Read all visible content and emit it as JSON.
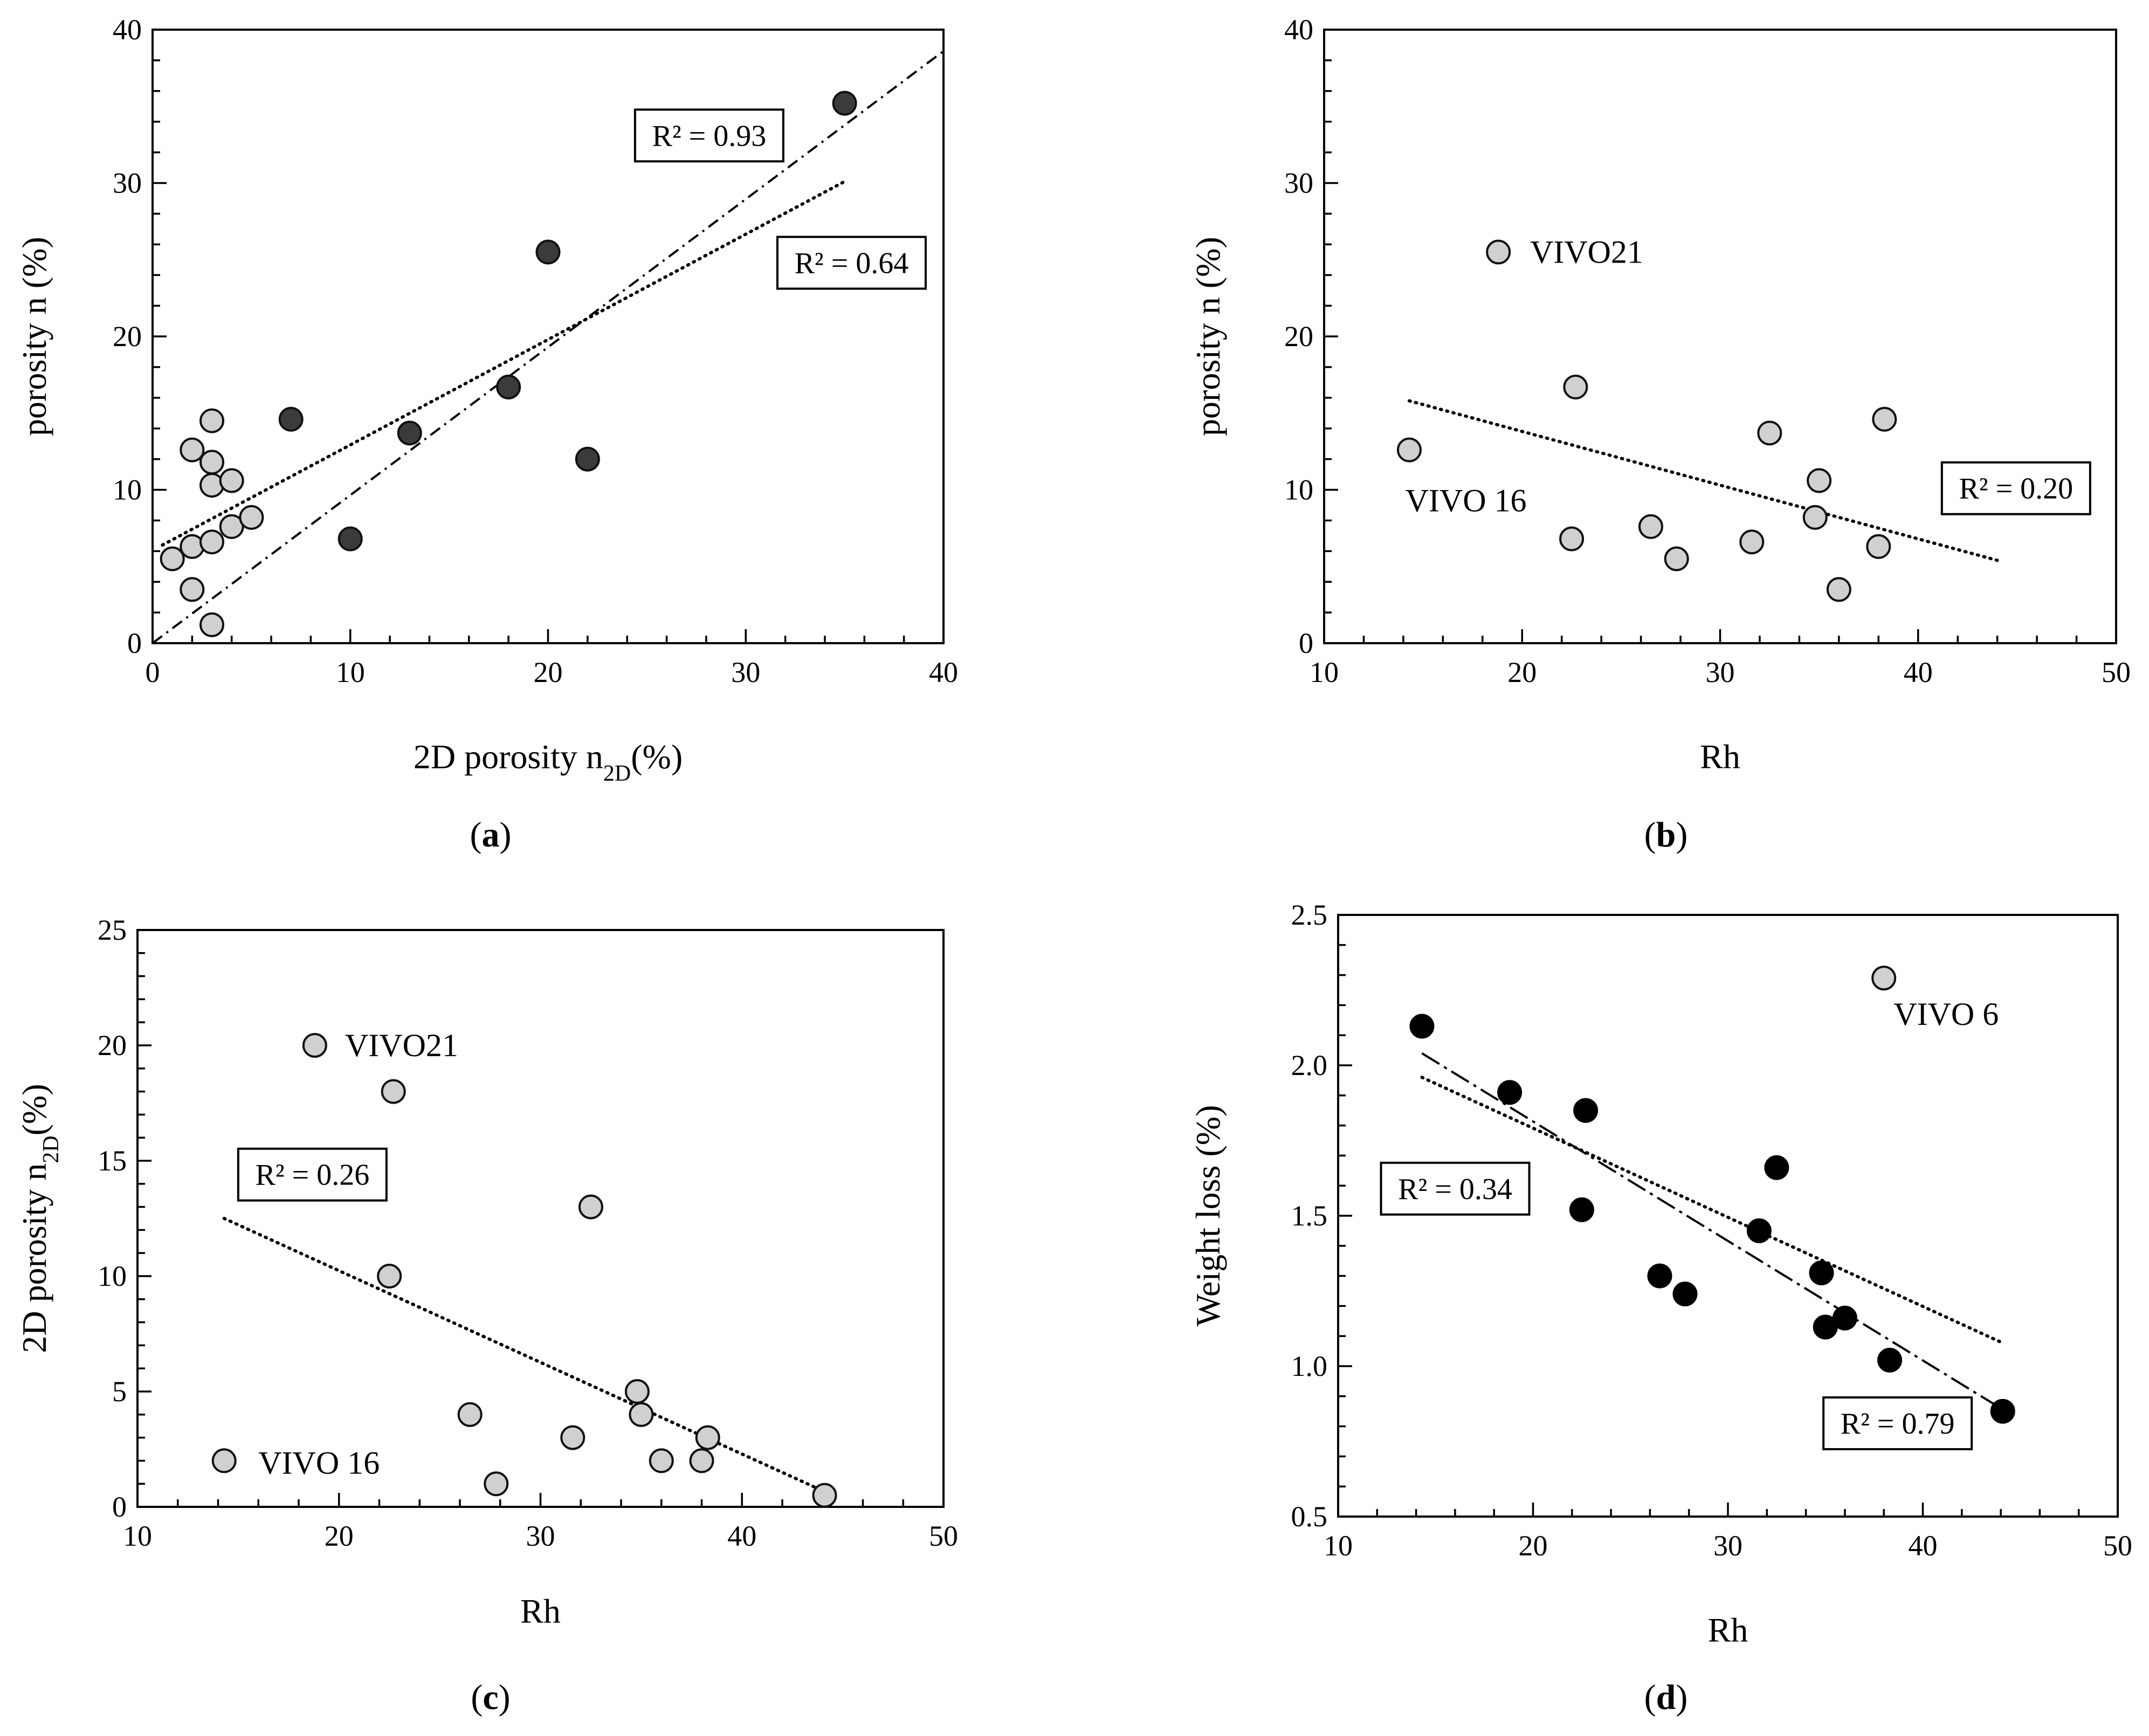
{
  "chart_data": [
    {
      "id": "a",
      "type": "scatter",
      "panel_label": "a",
      "xlabel": "2D porosity n",
      "xlabel_sub": "2D",
      "xlabel_suffix": "(%)",
      "ylabel": "porosity n (%)",
      "xlim": [
        0,
        40
      ],
      "ylim": [
        0,
        40
      ],
      "xticks": [
        0,
        10,
        20,
        30,
        40
      ],
      "yticks": [
        0,
        10,
        20,
        30,
        40
      ],
      "series": [
        {
          "name": "light",
          "style": "light",
          "points": [
            [
              1,
              5.5
            ],
            [
              2,
              3.5
            ],
            [
              2,
              6.3
            ],
            [
              2,
              12.6
            ],
            [
              3,
              1.2
            ],
            [
              3,
              6.6
            ],
            [
              3,
              10.3
            ],
            [
              3,
              11.8
            ],
            [
              3,
              14.5
            ],
            [
              4,
              7.6
            ],
            [
              4,
              10.6
            ],
            [
              5,
              8.2
            ]
          ]
        },
        {
          "name": "dark",
          "style": "dark",
          "points": [
            [
              7,
              14.6
            ],
            [
              10,
              6.8
            ],
            [
              13,
              13.7
            ],
            [
              18,
              16.7
            ],
            [
              20,
              25.5
            ],
            [
              22,
              12.0
            ],
            [
              35,
              35.2
            ]
          ]
        }
      ],
      "trendlines": [
        {
          "style": "dotted",
          "x": [
            0.5,
            35
          ],
          "y": [
            6.4,
            30.1
          ]
        },
        {
          "style": "dashdot",
          "x": [
            0,
            40
          ],
          "y": [
            0,
            38.6
          ]
        }
      ],
      "r2": [
        {
          "text": "R² = 0.93",
          "anchor": [
            24.4,
            33.1
          ]
        },
        {
          "text": "R² = 0.64",
          "anchor": [
            31.6,
            24.8
          ]
        }
      ],
      "annotations": []
    },
    {
      "id": "b",
      "type": "scatter",
      "panel_label": "b",
      "xlabel": "Rh",
      "ylabel": "porosity n (%)",
      "xlim": [
        10,
        50
      ],
      "ylim": [
        0,
        40
      ],
      "xticks": [
        10,
        20,
        30,
        40,
        50
      ],
      "yticks": [
        0,
        10,
        20,
        30,
        40
      ],
      "series": [
        {
          "name": "light",
          "style": "light",
          "points": [
            [
              14.3,
              12.6
            ],
            [
              18.8,
              25.5
            ],
            [
              22.5,
              6.8
            ],
            [
              22.7,
              16.7
            ],
            [
              26.5,
              7.6
            ],
            [
              27.8,
              5.5
            ],
            [
              31.6,
              6.6
            ],
            [
              32.5,
              13.7
            ],
            [
              34.8,
              8.2
            ],
            [
              35.0,
              10.6
            ],
            [
              36.0,
              3.5
            ],
            [
              38.0,
              6.3
            ],
            [
              38.3,
              14.6
            ]
          ]
        }
      ],
      "trendlines": [
        {
          "style": "dotted",
          "x": [
            14.3,
            44
          ],
          "y": [
            15.8,
            5.4
          ]
        }
      ],
      "r2": [
        {
          "text": "R² = 0.20",
          "anchor": [
            41.2,
            10.1
          ]
        }
      ],
      "annotations": [
        {
          "text": "VIVO21",
          "anchor": [
            20.4,
            25.5
          ]
        },
        {
          "text": "VIVO 16",
          "anchor": [
            14.1,
            9.3
          ]
        }
      ]
    },
    {
      "id": "c",
      "type": "scatter",
      "panel_label": "c",
      "xlabel": "Rh",
      "ylabel": "2D porosity n",
      "ylabel_sub": "2D",
      "ylabel_suffix": "(%)",
      "xlim": [
        10,
        50
      ],
      "ylim": [
        0,
        25
      ],
      "xticks": [
        10,
        20,
        30,
        40,
        50
      ],
      "yticks": [
        0,
        5,
        10,
        15,
        20,
        25
      ],
      "series": [
        {
          "name": "light",
          "style": "light",
          "points": [
            [
              14.3,
              2
            ],
            [
              18.8,
              20
            ],
            [
              22.5,
              10
            ],
            [
              22.7,
              18
            ],
            [
              26.5,
              4
            ],
            [
              27.8,
              1
            ],
            [
              31.6,
              3
            ],
            [
              32.5,
              13
            ],
            [
              34.8,
              5
            ],
            [
              35.0,
              4
            ],
            [
              36.0,
              2
            ],
            [
              38.0,
              2
            ],
            [
              38.3,
              3
            ],
            [
              44.1,
              0.5
            ]
          ]
        }
      ],
      "trendlines": [
        {
          "style": "dotted",
          "x": [
            14.3,
            44
          ],
          "y": [
            12.5,
            0.7
          ]
        }
      ],
      "r2": [
        {
          "text": "R² = 0.26",
          "anchor": [
            15.0,
            14.4
          ]
        }
      ],
      "annotations": [
        {
          "text": "VIVO21",
          "anchor": [
            20.3,
            20.0
          ]
        },
        {
          "text": "VIVO 16",
          "anchor": [
            16.0,
            1.9
          ]
        }
      ]
    },
    {
      "id": "d",
      "type": "scatter",
      "panel_label": "d",
      "xlabel": "Rh",
      "ylabel": "Weight loss (%)",
      "xlim": [
        10,
        50
      ],
      "ylim": [
        0.5,
        2.5
      ],
      "xticks": [
        10,
        20,
        30,
        40,
        50
      ],
      "yticks": [
        0.5,
        1.0,
        1.5,
        2.0,
        2.5
      ],
      "ytick_format": 1,
      "series": [
        {
          "name": "black",
          "style": "black",
          "points": [
            [
              14.3,
              2.13
            ],
            [
              18.8,
              1.91
            ],
            [
              22.5,
              1.52
            ],
            [
              22.7,
              1.85
            ],
            [
              26.5,
              1.3
            ],
            [
              27.8,
              1.24
            ],
            [
              31.6,
              1.45
            ],
            [
              32.5,
              1.66
            ],
            [
              34.8,
              1.31
            ],
            [
              35.0,
              1.13
            ],
            [
              36.0,
              1.16
            ],
            [
              38.3,
              1.02
            ],
            [
              44.1,
              0.85
            ]
          ]
        },
        {
          "name": "light",
          "style": "light",
          "points": [
            [
              38.0,
              2.29
            ]
          ]
        }
      ],
      "trendlines": [
        {
          "style": "dotted",
          "x": [
            14.3,
            44
          ],
          "y": [
            1.96,
            1.08
          ]
        },
        {
          "style": "longdash",
          "x": [
            14.3,
            44
          ],
          "y": [
            2.04,
            0.86
          ]
        }
      ],
      "r2": [
        {
          "text": "R² = 0.34",
          "anchor": [
            12.2,
            1.59
          ]
        },
        {
          "text": "R² = 0.79",
          "anchor": [
            34.9,
            0.81
          ]
        }
      ],
      "annotations": [
        {
          "text": "VIVO 6",
          "anchor": [
            38.5,
            2.17
          ]
        }
      ]
    }
  ]
}
